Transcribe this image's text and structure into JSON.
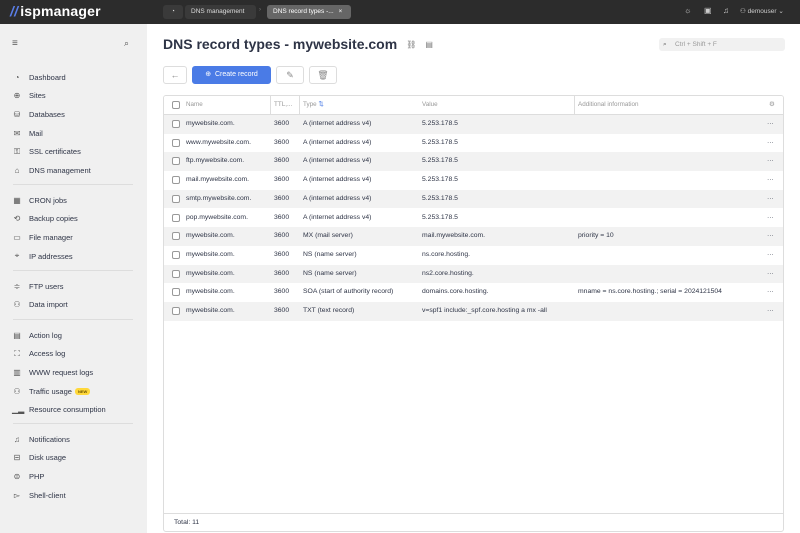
{
  "app": {
    "logo": "ispmanager",
    "user": "demouser"
  },
  "tabs": [
    {
      "label": "DNS management"
    },
    {
      "label": "DNS record types -..."
    }
  ],
  "sidebar": {
    "groups": [
      [
        {
          "label": "Dashboard",
          "icon": "dashboard-icon"
        },
        {
          "label": "Sites",
          "icon": "globe-icon"
        },
        {
          "label": "Databases",
          "icon": "database-icon"
        },
        {
          "label": "Mail",
          "icon": "mail-icon"
        },
        {
          "label": "SSL certificates",
          "icon": "ssl-icon"
        },
        {
          "label": "DNS management",
          "icon": "dns-icon"
        }
      ],
      [
        {
          "label": "CRON jobs",
          "icon": "calendar-icon"
        },
        {
          "label": "Backup copies",
          "icon": "backup-icon"
        },
        {
          "label": "File manager",
          "icon": "folder-icon"
        },
        {
          "label": "IP addresses",
          "icon": "location-icon"
        }
      ],
      [
        {
          "label": "FTP users",
          "icon": "ftp-icon"
        },
        {
          "label": "Data import",
          "icon": "import-icon"
        }
      ],
      [
        {
          "label": "Action log",
          "icon": "action-log-icon"
        },
        {
          "label": "Access log",
          "icon": "access-log-icon"
        },
        {
          "label": "WWW request logs",
          "icon": "request-log-icon"
        },
        {
          "label": "Traffic usage",
          "icon": "traffic-icon",
          "badge": "NEW"
        },
        {
          "label": "Resource consumption",
          "icon": "bar-chart-icon"
        }
      ],
      [
        {
          "label": "Notifications",
          "icon": "bell-icon"
        },
        {
          "label": "Disk usage",
          "icon": "disk-icon"
        },
        {
          "label": "PHP",
          "icon": "php-icon"
        },
        {
          "label": "Shell-client",
          "icon": "terminal-icon"
        }
      ]
    ]
  },
  "page": {
    "title": "DNS record types - mywebsite.com",
    "search_placeholder": "Ctrl + Shift + F",
    "create_label": "Create record"
  },
  "table": {
    "columns": [
      "Name",
      "TTL,...",
      "Type",
      "Value",
      "Additional information"
    ],
    "rows": [
      [
        "mywebsite.com.",
        "3600",
        "A (internet address v4)",
        "5.253.178.5",
        ""
      ],
      [
        "www.mywebsite.com.",
        "3600",
        "A (internet address v4)",
        "5.253.178.5",
        ""
      ],
      [
        "ftp.mywebsite.com.",
        "3600",
        "A (internet address v4)",
        "5.253.178.5",
        ""
      ],
      [
        "mail.mywebsite.com.",
        "3600",
        "A (internet address v4)",
        "5.253.178.5",
        ""
      ],
      [
        "smtp.mywebsite.com.",
        "3600",
        "A (internet address v4)",
        "5.253.178.5",
        ""
      ],
      [
        "pop.mywebsite.com.",
        "3600",
        "A (internet address v4)",
        "5.253.178.5",
        ""
      ],
      [
        "mywebsite.com.",
        "3600",
        "MX (mail server)",
        "mail.mywebsite.com.",
        "priority = 10"
      ],
      [
        "mywebsite.com.",
        "3600",
        "NS (name server)",
        "ns.core.hosting.",
        ""
      ],
      [
        "mywebsite.com.",
        "3600",
        "NS (name server)",
        "ns2.core.hosting.",
        ""
      ],
      [
        "mywebsite.com.",
        "3600",
        "SOA (start of authority record)",
        "domains.core.hosting.",
        "mname = ns.core.hosting.; serial = 2024121504"
      ],
      [
        "mywebsite.com.",
        "3600",
        "TXT (text record)",
        "v=spf1 include:_spf.core.hosting a mx -all",
        ""
      ]
    ],
    "total": "Total: 11"
  },
  "colors": {
    "accent": "#4a7be6",
    "topbar": "#2c2c2c",
    "badge": "#ffd83a"
  }
}
